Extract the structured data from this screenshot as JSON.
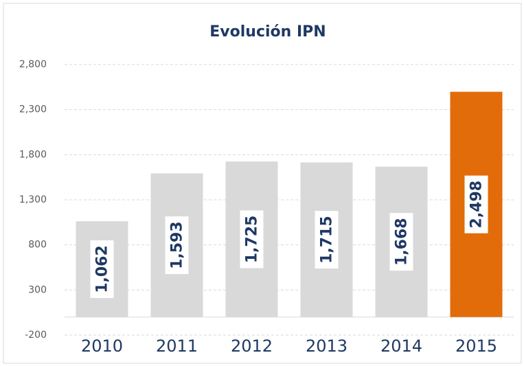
{
  "chart_data": {
    "type": "bar",
    "title": "Evolución IPN",
    "categories": [
      "2010",
      "2011",
      "2012",
      "2013",
      "2014",
      "2015"
    ],
    "values": [
      1062,
      1593,
      1725,
      1715,
      1668,
      2498
    ],
    "value_labels": [
      "1,062",
      "1,593",
      "1,725",
      "1,715",
      "1,668",
      "2,498"
    ],
    "colors": [
      "#d9d9d9",
      "#d9d9d9",
      "#d9d9d9",
      "#d9d9d9",
      "#d9d9d9",
      "#e36c0a"
    ],
    "ylim": [
      -200,
      2800
    ],
    "yticks": [
      -200,
      300,
      800,
      {
        "value": 1300,
        "label": "1,300"
      },
      {
        "value": 1800,
        "label": "1,800"
      },
      {
        "value": 2300,
        "label": "2,300"
      },
      {
        "value": 2800,
        "label": "2,800"
      }
    ],
    "grid": true
  }
}
